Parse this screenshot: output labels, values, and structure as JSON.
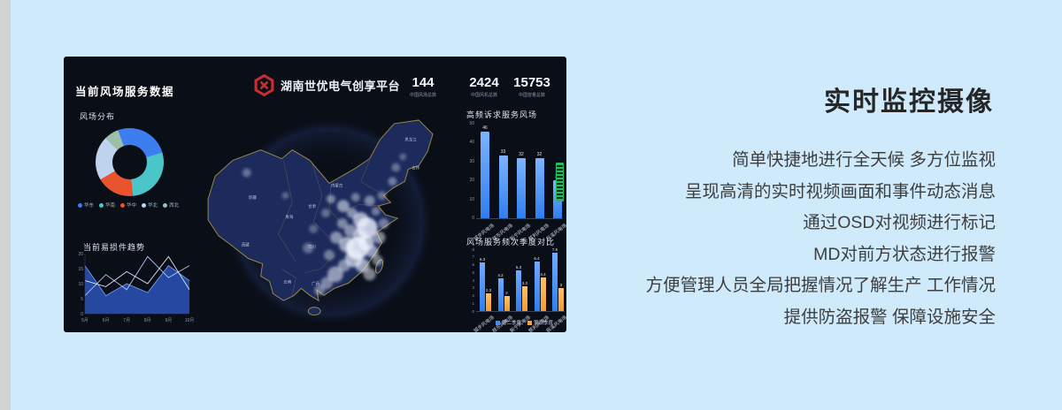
{
  "page": {
    "heading": "实时监控摄像",
    "body_lines": [
      "简单快捷地进行全天候 多方位监视",
      "呈现高清的实时视频画面和事件动态消息",
      "通过OSD对视频进行标记",
      "MD对前方状态进行报警",
      "方便管理人员全局把握情况了解生产 工作情况",
      "提供防盗报警 保障设施安全"
    ]
  },
  "dashboard": {
    "main_title": "当前风场服务数据",
    "brand_name": "湖南世优电气创享平台",
    "stats": [
      {
        "value": "144",
        "label": "中国风场总数"
      },
      {
        "value": "2424",
        "label": "中国风机总数"
      },
      {
        "value": "15753",
        "label": "中国容量总数"
      }
    ],
    "map_labels": [
      "新疆",
      "西藏",
      "青海",
      "内蒙古",
      "甘肃",
      "四川",
      "云南",
      "广西",
      "黑龙江",
      "吉林"
    ],
    "colors": {
      "page_bg": "#cfeafb",
      "dashboard_bg": "#0a0e17",
      "accent_blue": "#3f8cf3",
      "accent_orange": "#f2a33c",
      "logo_red": "#c62f2f",
      "map_fill": "#1d2a5c",
      "map_border": "#b7a049",
      "green_indicator": "#1fbf5f"
    }
  },
  "chart_data": [
    {
      "type": "pie",
      "title": "风场分布",
      "donut": true,
      "labels": [
        "华东",
        "华南",
        "华中",
        "华北",
        "西北"
      ],
      "values": [
        26,
        28,
        18,
        21,
        7
      ],
      "colors": [
        "#3c7ef0",
        "#4cc5c8",
        "#e9532e",
        "#bfd2ee",
        "#9cbfab"
      ],
      "legend_position": "bottom"
    },
    {
      "type": "line",
      "title": "当前易损件趋势",
      "x": [
        "5月",
        "6月",
        "7月",
        "8月",
        "9月",
        "10月"
      ],
      "ylim": [
        0,
        20
      ],
      "yticks": [
        0,
        5,
        10,
        15,
        20
      ],
      "series": [
        {
          "values": [
            16,
            6,
            10,
            7,
            16,
            11
          ],
          "area": true
        },
        {
          "values": [
            6,
            13,
            8,
            19,
            12,
            16
          ]
        },
        {
          "values": [
            11,
            9,
            14,
            10,
            19,
            8
          ]
        }
      ]
    },
    {
      "type": "bar",
      "title": "高频诉求服务风场",
      "categories": [
        "城步风电场",
        "桂东风电场",
        "新宁风电场",
        "慈利风电场",
        "辰溪风电场"
      ],
      "values": [
        46,
        33,
        32,
        32,
        20
      ],
      "ylim": [
        0,
        50
      ],
      "yticks": [
        0,
        10,
        20,
        30,
        40,
        50
      ],
      "bar_color": "#3f8cf3"
    },
    {
      "type": "bar",
      "title": "风场服务频次季度对比",
      "categories": [
        "城步风电场",
        "桂东风电场",
        "新宁风电场",
        "慈利风电场",
        "辰溪风电场"
      ],
      "ylim": [
        0,
        8
      ],
      "yticks": [
        0,
        1,
        2,
        3,
        4,
        5,
        6,
        7,
        8
      ],
      "series": [
        {
          "name": "第二季度",
          "color": "#3f8cf3",
          "values": [
            6.3,
            4.2,
            5.3,
            6.4,
            7.5
          ]
        },
        {
          "name": "第四季度",
          "color": "#f2a33c",
          "values": [
            2.3,
            2,
            3.2,
            4.4,
            3
          ]
        }
      ],
      "legend_position": "bottom"
    }
  ]
}
